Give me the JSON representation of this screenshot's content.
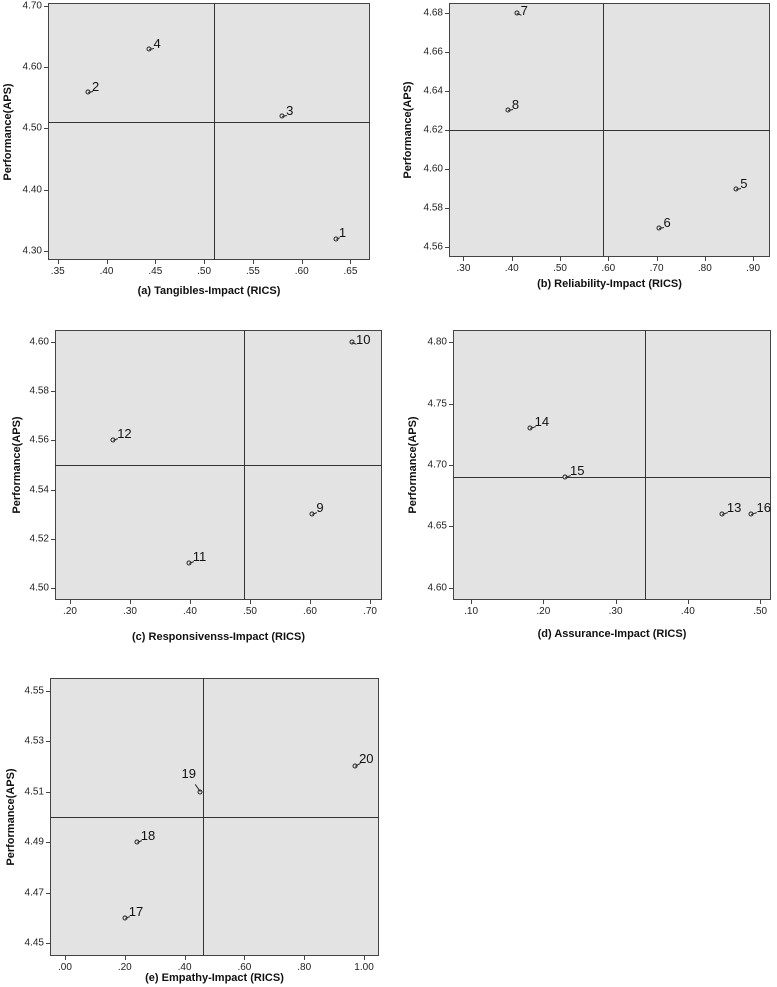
{
  "chart_data": [
    {
      "type": "scatter",
      "xlabel": "(a) Tangibles-Impact (RICS)",
      "ylabel": "Performance(APS)",
      "xlim": [
        0.34,
        0.67
      ],
      "ylim": [
        4.285,
        4.705
      ],
      "xticks": [
        ".35",
        ".40",
        ".45",
        ".50",
        ".55",
        ".60",
        ".65"
      ],
      "xtick_values": [
        0.35,
        0.4,
        0.45,
        0.5,
        0.55,
        0.6,
        0.65
      ],
      "yticks": [
        "4.70",
        "4.60",
        "4.50",
        "4.40",
        "4.30"
      ],
      "ytick_values": [
        4.7,
        4.6,
        4.5,
        4.4,
        4.3
      ],
      "ref_x": 0.51,
      "ref_y": 4.51,
      "points": [
        {
          "label": "1",
          "x": 0.635,
          "y": 4.32
        },
        {
          "label": "2",
          "x": 0.381,
          "y": 4.56
        },
        {
          "label": "3",
          "x": 0.58,
          "y": 4.52
        },
        {
          "label": "4",
          "x": 0.444,
          "y": 4.63
        }
      ]
    },
    {
      "type": "scatter",
      "xlabel": "(b) Reliability-Impact (RICS)",
      "ylabel": "Performance(APS)",
      "xlim": [
        0.27,
        0.935
      ],
      "ylim": [
        4.555,
        4.685
      ],
      "xticks": [
        ".30",
        ".40",
        ".50",
        ".60",
        ".70",
        ".80",
        ".90"
      ],
      "xtick_values": [
        0.3,
        0.4,
        0.5,
        0.6,
        0.7,
        0.8,
        0.9
      ],
      "yticks": [
        "4.68",
        "4.66",
        "4.64",
        "4.62",
        "4.60",
        "4.58",
        "4.56"
      ],
      "ytick_values": [
        4.68,
        4.66,
        4.64,
        4.62,
        4.6,
        4.58,
        4.56
      ],
      "ref_x": 0.59,
      "ref_y": 4.62,
      "points": [
        {
          "label": "5",
          "x": 0.865,
          "y": 4.59
        },
        {
          "label": "6",
          "x": 0.706,
          "y": 4.57
        },
        {
          "label": "7",
          "x": 0.41,
          "y": 4.68
        },
        {
          "label": "8",
          "x": 0.392,
          "y": 4.63
        }
      ]
    },
    {
      "type": "scatter",
      "xlabel": "(c) Responsivenss-Impact (RICS)",
      "ylabel": "Performance(APS)",
      "xlim": [
        0.175,
        0.72
      ],
      "ylim": [
        4.495,
        4.605
      ],
      "xticks": [
        ".20",
        ".30",
        ".40",
        ".50",
        ".60",
        ".70"
      ],
      "xtick_values": [
        0.2,
        0.3,
        0.4,
        0.5,
        0.6,
        0.7
      ],
      "yticks": [
        "4.60",
        "4.58",
        "4.56",
        "4.54",
        "4.52",
        "4.50"
      ],
      "ytick_values": [
        4.6,
        4.58,
        4.56,
        4.54,
        4.52,
        4.5
      ],
      "ref_x": 0.49,
      "ref_y": 4.55,
      "points": [
        {
          "label": "9",
          "x": 0.604,
          "y": 4.53
        },
        {
          "label": "10",
          "x": 0.67,
          "y": 4.6
        },
        {
          "label": "11",
          "x": 0.398,
          "y": 4.51
        },
        {
          "label": "12",
          "x": 0.272,
          "y": 4.56
        }
      ]
    },
    {
      "type": "scatter",
      "xlabel": "(d) Assurance-Impact (RICS)",
      "ylabel": "Performance(APS)",
      "xlim": [
        0.075,
        0.515
      ],
      "ylim": [
        4.59,
        4.81
      ],
      "xticks": [
        ".10",
        ".20",
        ".30",
        ".40",
        ".50"
      ],
      "xtick_values": [
        0.1,
        0.2,
        0.3,
        0.4,
        0.5
      ],
      "yticks": [
        "4.80",
        "4.75",
        "4.70",
        "4.65",
        "4.60"
      ],
      "ytick_values": [
        4.8,
        4.75,
        4.7,
        4.65,
        4.6
      ],
      "ref_x": 0.34,
      "ref_y": 4.69,
      "points": [
        {
          "label": "13",
          "x": 0.447,
          "y": 4.66
        },
        {
          "label": "14",
          "x": 0.181,
          "y": 4.73
        },
        {
          "label": "15",
          "x": 0.23,
          "y": 4.69
        },
        {
          "label": "16",
          "x": 0.488,
          "y": 4.66
        }
      ]
    },
    {
      "type": "scatter",
      "xlabel": "(e) Empathy-Impact (RICS)",
      "ylabel": "Performance(APS)",
      "xlim": [
        -0.05,
        1.05
      ],
      "ylim": [
        4.445,
        4.555
      ],
      "xticks": [
        ".00",
        ".20",
        ".40",
        ".60",
        ".80",
        "1.00"
      ],
      "xtick_values": [
        0.0,
        0.2,
        0.4,
        0.6,
        0.8,
        1.0
      ],
      "yticks": [
        "4.55",
        "4.53",
        "4.51",
        "4.49",
        "4.47",
        "4.45"
      ],
      "ytick_values": [
        4.55,
        4.53,
        4.51,
        4.49,
        4.47,
        4.45
      ],
      "ref_x": 0.46,
      "ref_y": 4.5,
      "points": [
        {
          "label": "17",
          "x": 0.2,
          "y": 4.46
        },
        {
          "label": "18",
          "x": 0.24,
          "y": 4.49
        },
        {
          "label": "19",
          "x": 0.45,
          "y": 4.51
        },
        {
          "label": "20",
          "x": 0.97,
          "y": 4.52
        }
      ]
    }
  ]
}
